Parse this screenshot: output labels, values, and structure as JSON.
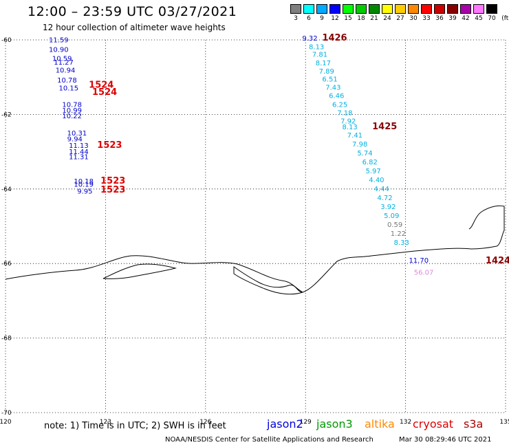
{
  "title": "12:00 – 23:59 UTC 03/27/2021",
  "subtitle": "12 hour collection of altimeter wave heights",
  "legend": {
    "unit": "(ft)",
    "items": [
      {
        "label": "3",
        "color": "#808080"
      },
      {
        "label": "6",
        "color": "#00ffff"
      },
      {
        "label": "9",
        "color": "#00aaff"
      },
      {
        "label": "12",
        "color": "#0000ff"
      },
      {
        "label": "15",
        "color": "#00ff00"
      },
      {
        "label": "18",
        "color": "#00cc00"
      },
      {
        "label": "21",
        "color": "#008800"
      },
      {
        "label": "24",
        "color": "#ffff00"
      },
      {
        "label": "27",
        "color": "#ffcc00"
      },
      {
        "label": "30",
        "color": "#ff8800"
      },
      {
        "label": "33",
        "color": "#ff0000"
      },
      {
        "label": "36",
        "color": "#cc0000"
      },
      {
        "label": "39",
        "color": "#880000"
      },
      {
        "label": "42",
        "color": "#aa00aa"
      },
      {
        "label": "45",
        "color": "#ff77ff"
      },
      {
        "label": "70",
        "color": "#000000"
      }
    ]
  },
  "map": {
    "lon_range": [
      120,
      135
    ],
    "lat_range": [
      -70,
      -60
    ],
    "lon_ticks": [
      "120",
      "123",
      "126",
      "129",
      "132",
      "135"
    ],
    "lat_ticks": [
      "-60",
      "-62",
      "-64",
      "-66",
      "-68",
      "-70"
    ],
    "grid": true
  },
  "tracks": [
    {
      "color": "#0000cc",
      "points": [
        {
          "lon": 121.3,
          "lat": -60.06,
          "label": "11.59"
        },
        {
          "lon": 121.3,
          "lat": -60.32,
          "label": "10.90"
        },
        {
          "lon": 121.4,
          "lat": -60.56,
          "label": "10.59"
        },
        {
          "lon": 121.45,
          "lat": -60.66,
          "label": "11.27"
        },
        {
          "lon": 121.5,
          "lat": -60.88,
          "label": "10.94"
        },
        {
          "lon": 121.55,
          "lat": -61.14,
          "label": "10.78"
        },
        {
          "lon": 121.6,
          "lat": -61.36,
          "label": "10.15"
        },
        {
          "lon": 121.7,
          "lat": -61.8,
          "label": "10.78"
        },
        {
          "lon": 121.7,
          "lat": -61.96,
          "label": "10.99"
        },
        {
          "lon": 121.7,
          "lat": -62.1,
          "label": "10.22"
        },
        {
          "lon": 121.85,
          "lat": -62.56,
          "label": "10.31"
        },
        {
          "lon": 121.85,
          "lat": -62.72,
          "label": "9.94"
        },
        {
          "lon": 121.9,
          "lat": -62.9,
          "label": "11.13"
        },
        {
          "lon": 121.9,
          "lat": -63.06,
          "label": "11.44"
        },
        {
          "lon": 121.9,
          "lat": -63.2,
          "label": "11.31"
        },
        {
          "lon": 122.05,
          "lat": -63.86,
          "label": "10.18"
        },
        {
          "lon": 122.05,
          "lat": -63.94,
          "label": "10.19"
        },
        {
          "lon": 122.15,
          "lat": -64.12,
          "label": "9.95"
        }
      ]
    },
    {
      "color": "#0000cc",
      "points": [
        {
          "lon": 128.9,
          "lat": -60.02,
          "label": "9.32"
        }
      ]
    },
    {
      "color": "#00b0e0",
      "points": [
        {
          "lon": 129.1,
          "lat": -60.25,
          "label": "8.13"
        },
        {
          "lon": 129.2,
          "lat": -60.45,
          "label": "7.81"
        },
        {
          "lon": 129.3,
          "lat": -60.68,
          "label": "8.17"
        },
        {
          "lon": 129.4,
          "lat": -60.9,
          "label": "7.89"
        },
        {
          "lon": 129.5,
          "lat": -61.12,
          "label": "6.51"
        },
        {
          "lon": 129.6,
          "lat": -61.34,
          "label": "7.43"
        },
        {
          "lon": 129.7,
          "lat": -61.56,
          "label": "6.46"
        },
        {
          "lon": 129.8,
          "lat": -61.8,
          "label": "6.25"
        },
        {
          "lon": 129.95,
          "lat": -62.02,
          "label": "7.18"
        },
        {
          "lon": 130.05,
          "lat": -62.24,
          "label": "7.92"
        },
        {
          "lon": 130.1,
          "lat": -62.4,
          "label": "8.13"
        },
        {
          "lon": 130.25,
          "lat": -62.62,
          "label": "7.41"
        },
        {
          "lon": 130.4,
          "lat": -62.86,
          "label": "7.98"
        },
        {
          "lon": 130.55,
          "lat": -63.1,
          "label": "5.74"
        },
        {
          "lon": 130.7,
          "lat": -63.34,
          "label": "6.82"
        },
        {
          "lon": 130.8,
          "lat": -63.58,
          "label": "5.97"
        },
        {
          "lon": 130.9,
          "lat": -63.82,
          "label": "4.40"
        },
        {
          "lon": 131.05,
          "lat": -64.06,
          "label": "4.44"
        },
        {
          "lon": 131.15,
          "lat": -64.3,
          "label": "4.72"
        },
        {
          "lon": 131.25,
          "lat": -64.54,
          "label": "3.92"
        },
        {
          "lon": 131.35,
          "lat": -64.78,
          "label": "5.09"
        }
      ]
    },
    {
      "color": "#777777",
      "points": [
        {
          "lon": 131.45,
          "lat": -65.02,
          "label": "0.59"
        },
        {
          "lon": 131.55,
          "lat": -65.26,
          "label": "1.22"
        }
      ]
    },
    {
      "color": "#00b0e0",
      "points": [
        {
          "lon": 131.65,
          "lat": -65.5,
          "label": "8.33"
        }
      ]
    },
    {
      "color": "#0000cc",
      "points": [
        {
          "lon": 132.1,
          "lat": -65.98,
          "label": "11.70"
        }
      ]
    },
    {
      "color": "#dd88dd",
      "points": [
        {
          "lon": 132.25,
          "lat": -66.3,
          "label": "56.07"
        }
      ]
    }
  ],
  "times": [
    {
      "lon": 122.5,
      "lat": -61.28,
      "label": "1524",
      "color": "#dd0000"
    },
    {
      "lon": 122.6,
      "lat": -61.48,
      "label": "1524",
      "color": "#dd0000"
    },
    {
      "lon": 122.75,
      "lat": -62.9,
      "label": "1523",
      "color": "#dd0000"
    },
    {
      "lon": 122.85,
      "lat": -63.86,
      "label": "1523",
      "color": "#dd0000"
    },
    {
      "lon": 122.85,
      "lat": -64.1,
      "label": "1523",
      "color": "#dd0000"
    },
    {
      "lon": 129.5,
      "lat": -60.02,
      "label": "1426",
      "color": "#880000"
    },
    {
      "lon": 131.0,
      "lat": -62.4,
      "label": "1425",
      "color": "#880000"
    },
    {
      "lon": 134.4,
      "lat": -66.0,
      "label": "1424",
      "color": "#880000"
    }
  ],
  "note": "note: 1) Time is in UTC; 2) SWH is in feet",
  "satellites": [
    {
      "name": "jason2",
      "color": "#0000dd"
    },
    {
      "name": "jason3",
      "color": "#009900"
    },
    {
      "name": "altika",
      "color": "#ff8800"
    },
    {
      "name": "cryosat",
      "color": "#dd0000"
    },
    {
      "name": "s3a",
      "color": "#aa0000"
    }
  ],
  "credit": "NOAA/NESDIS Center for Satellite Applications and Research",
  "generated": "Mar 30 08:29:46 UTC 2021"
}
